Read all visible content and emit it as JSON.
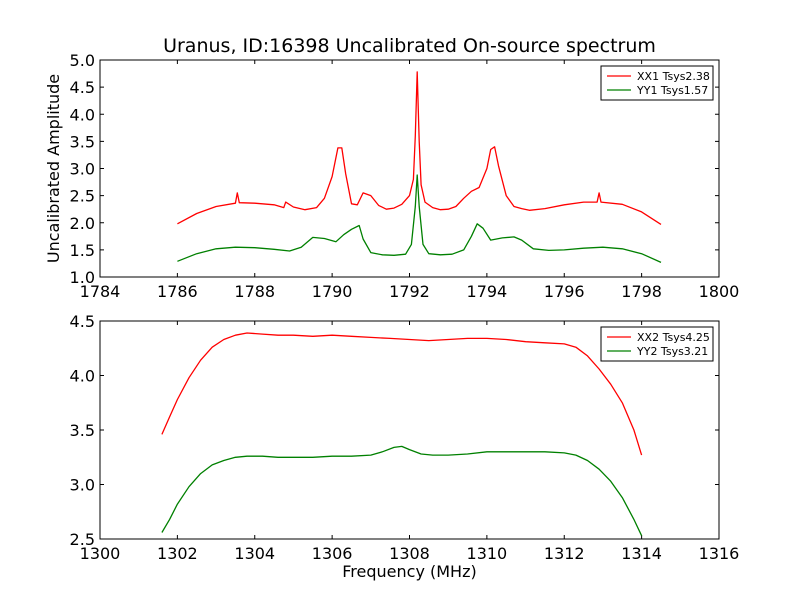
{
  "chart_data": [
    {
      "type": "line",
      "title": "Uranus, ID:16398 Uncalibrated On-source spectrum",
      "xlabel": "",
      "ylabel": "Uncalibrated Amplitude",
      "xlim": [
        1784,
        1800
      ],
      "ylim": [
        1.0,
        5.0
      ],
      "xticks": [
        "1784",
        "1786",
        "1788",
        "1790",
        "1792",
        "1794",
        "1796",
        "1798",
        "1800"
      ],
      "yticks": [
        "1.0",
        "1.5",
        "2.0",
        "2.5",
        "3.0",
        "3.5",
        "4.0",
        "4.5",
        "5.0"
      ],
      "legend_position": "top-right",
      "series": [
        {
          "name": "XX1 Tsys2.38",
          "color": "#ff0000",
          "x": [
            1786.0,
            1786.5,
            1787.0,
            1787.5,
            1787.55,
            1787.6,
            1788.0,
            1788.5,
            1788.75,
            1788.8,
            1789.0,
            1789.3,
            1789.6,
            1789.8,
            1790.0,
            1790.15,
            1790.25,
            1790.35,
            1790.5,
            1790.65,
            1790.8,
            1791.0,
            1791.2,
            1791.4,
            1791.6,
            1791.8,
            1792.0,
            1792.1,
            1792.15,
            1792.2,
            1792.25,
            1792.3,
            1792.4,
            1792.6,
            1792.8,
            1793.0,
            1793.2,
            1793.4,
            1793.6,
            1793.8,
            1794.0,
            1794.1,
            1794.2,
            1794.3,
            1794.5,
            1794.7,
            1794.9,
            1795.1,
            1795.5,
            1796.0,
            1796.5,
            1796.85,
            1796.9,
            1796.95,
            1797.5,
            1798.0,
            1798.5
          ],
          "y": [
            1.98,
            2.17,
            2.3,
            2.36,
            2.55,
            2.37,
            2.36,
            2.33,
            2.28,
            2.38,
            2.29,
            2.24,
            2.28,
            2.45,
            2.85,
            3.38,
            3.38,
            2.9,
            2.35,
            2.33,
            2.55,
            2.5,
            2.32,
            2.25,
            2.27,
            2.34,
            2.5,
            2.8,
            3.6,
            4.78,
            3.5,
            2.7,
            2.38,
            2.28,
            2.24,
            2.25,
            2.3,
            2.45,
            2.58,
            2.65,
            3.0,
            3.35,
            3.4,
            3.05,
            2.5,
            2.3,
            2.26,
            2.23,
            2.26,
            2.33,
            2.38,
            2.38,
            2.55,
            2.38,
            2.34,
            2.2,
            1.97
          ]
        },
        {
          "name": "YY1 Tsys1.57",
          "color": "#008000",
          "x": [
            1786.0,
            1786.5,
            1787.0,
            1787.5,
            1788.0,
            1788.5,
            1788.9,
            1789.2,
            1789.5,
            1789.8,
            1790.1,
            1790.3,
            1790.5,
            1790.7,
            1790.8,
            1791.0,
            1791.3,
            1791.6,
            1791.9,
            1792.05,
            1792.15,
            1792.2,
            1792.25,
            1792.35,
            1792.5,
            1792.8,
            1793.1,
            1793.4,
            1793.6,
            1793.75,
            1793.9,
            1794.1,
            1794.4,
            1794.7,
            1794.9,
            1795.2,
            1795.6,
            1796.0,
            1796.5,
            1797.0,
            1797.5,
            1798.0,
            1798.5
          ],
          "y": [
            1.29,
            1.43,
            1.52,
            1.55,
            1.54,
            1.51,
            1.48,
            1.55,
            1.73,
            1.71,
            1.65,
            1.78,
            1.88,
            1.95,
            1.7,
            1.45,
            1.41,
            1.4,
            1.42,
            1.6,
            2.3,
            2.88,
            2.3,
            1.6,
            1.43,
            1.41,
            1.42,
            1.5,
            1.75,
            1.98,
            1.9,
            1.68,
            1.72,
            1.74,
            1.68,
            1.52,
            1.49,
            1.5,
            1.53,
            1.55,
            1.52,
            1.43,
            1.27
          ]
        }
      ]
    },
    {
      "type": "line",
      "title": "",
      "xlabel": "Frequency (MHz)",
      "ylabel": "",
      "xlim": [
        1300,
        1316
      ],
      "ylim": [
        2.5,
        4.5
      ],
      "xticks": [
        "1300",
        "1302",
        "1304",
        "1306",
        "1308",
        "1310",
        "1312",
        "1314",
        "1316"
      ],
      "yticks": [
        "2.5",
        "3.0",
        "3.5",
        "4.0",
        "4.5"
      ],
      "legend_position": "top-right",
      "series": [
        {
          "name": "XX2 Tsys4.25",
          "color": "#ff0000",
          "x": [
            1301.6,
            1301.8,
            1302.0,
            1302.3,
            1302.6,
            1302.9,
            1303.2,
            1303.5,
            1303.8,
            1304.2,
            1304.6,
            1305.0,
            1305.5,
            1306.0,
            1306.5,
            1307.0,
            1307.5,
            1308.0,
            1308.5,
            1309.0,
            1309.5,
            1310.0,
            1310.5,
            1311.0,
            1311.5,
            1312.0,
            1312.3,
            1312.6,
            1312.9,
            1313.2,
            1313.5,
            1313.8,
            1314.0
          ],
          "y": [
            3.46,
            3.62,
            3.78,
            3.98,
            4.14,
            4.26,
            4.33,
            4.37,
            4.39,
            4.38,
            4.37,
            4.37,
            4.36,
            4.37,
            4.36,
            4.35,
            4.34,
            4.33,
            4.32,
            4.33,
            4.34,
            4.34,
            4.33,
            4.31,
            4.3,
            4.29,
            4.26,
            4.18,
            4.06,
            3.92,
            3.75,
            3.5,
            3.27
          ]
        },
        {
          "name": "YY2 Tsys3.21",
          "color": "#008000",
          "x": [
            1301.6,
            1301.8,
            1302.0,
            1302.3,
            1302.6,
            1302.9,
            1303.2,
            1303.5,
            1303.8,
            1304.2,
            1304.6,
            1305.0,
            1305.5,
            1306.0,
            1306.5,
            1307.0,
            1307.3,
            1307.6,
            1307.8,
            1308.0,
            1308.3,
            1308.6,
            1309.0,
            1309.5,
            1310.0,
            1310.5,
            1311.0,
            1311.5,
            1312.0,
            1312.3,
            1312.6,
            1312.9,
            1313.2,
            1313.5,
            1313.8,
            1314.0
          ],
          "y": [
            2.56,
            2.68,
            2.82,
            2.98,
            3.1,
            3.18,
            3.22,
            3.25,
            3.26,
            3.26,
            3.25,
            3.25,
            3.25,
            3.26,
            3.26,
            3.27,
            3.3,
            3.34,
            3.35,
            3.32,
            3.28,
            3.27,
            3.27,
            3.28,
            3.3,
            3.3,
            3.3,
            3.3,
            3.29,
            3.27,
            3.22,
            3.14,
            3.03,
            2.88,
            2.68,
            2.53
          ]
        }
      ]
    }
  ]
}
